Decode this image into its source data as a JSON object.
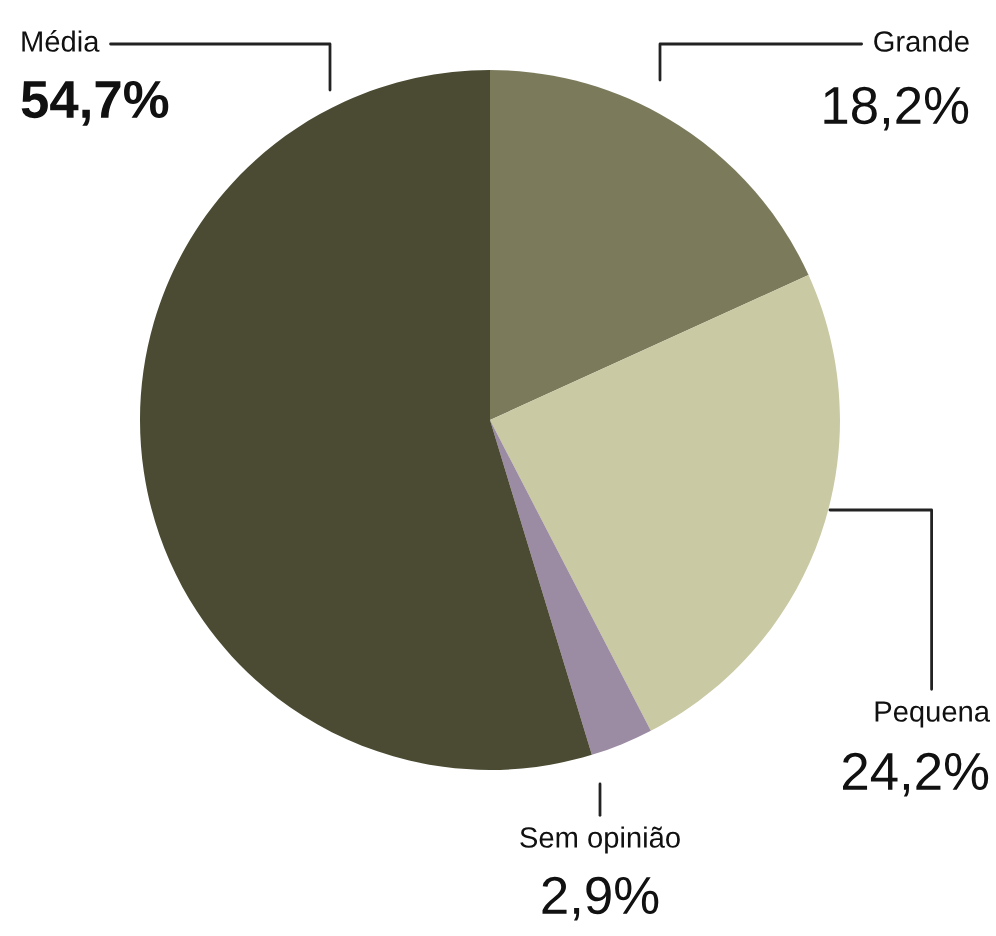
{
  "chart_data": {
    "type": "pie",
    "categories": [
      "Grande",
      "Pequena",
      "Sem opinião",
      "Média"
    ],
    "values": [
      18.2,
      24.2,
      2.9,
      54.7
    ],
    "colors": [
      "#7b7b5c",
      "#c9c9a3",
      "#9b8ba3",
      "#4b4b33"
    ],
    "value_labels": [
      "18,2%",
      "24,2%",
      "2,9%",
      "54,7%"
    ]
  }
}
